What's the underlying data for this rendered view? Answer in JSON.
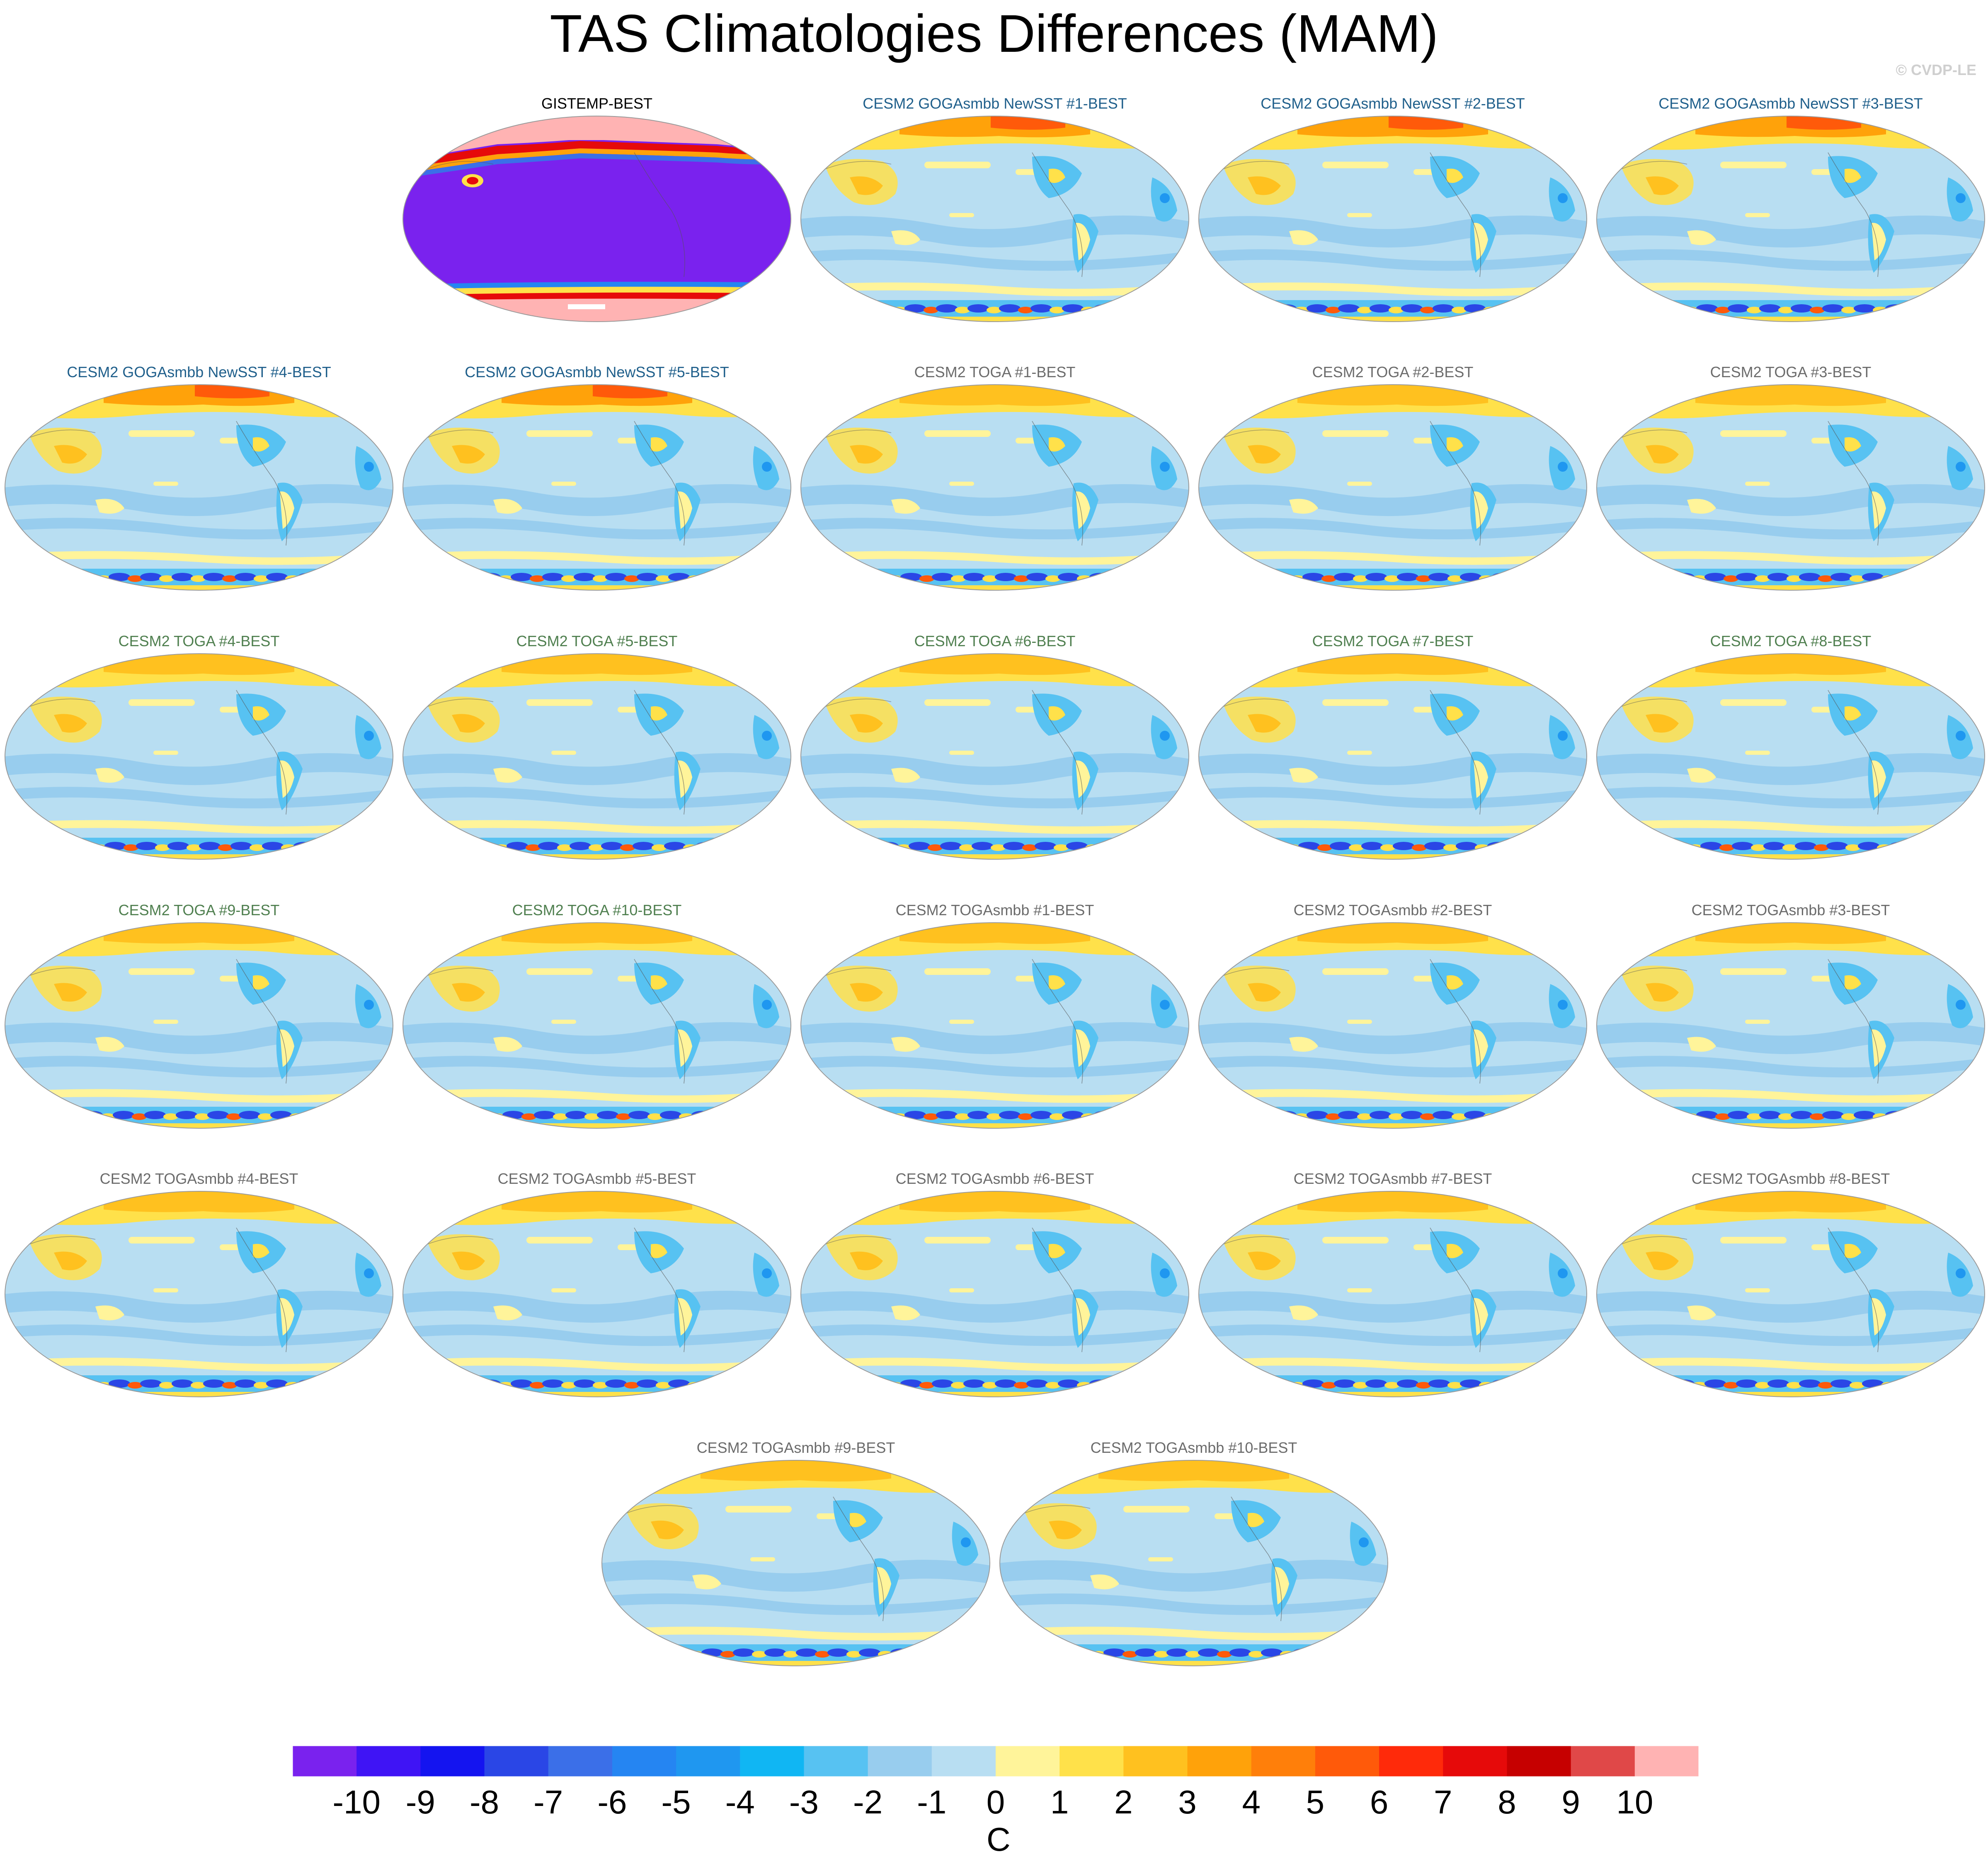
{
  "header": {
    "title": "TAS Climatologies Differences (MAM)",
    "credit": "© CVDP-LE"
  },
  "chart_data": {
    "type": "heatmap",
    "title": "TAS Climatologies Differences (MAM)",
    "projection": "Robinson (Pacific-centered global maps)",
    "panels": [
      {
        "title": "GISTEMP-BEST",
        "title_color": "#000000",
        "pattern": "obs"
      },
      {
        "title": "CESM2 GOGAsmbb NewSST #1-BEST",
        "title_color": "#1f5f8b",
        "pattern": "goga"
      },
      {
        "title": "CESM2 GOGAsmbb NewSST #2-BEST",
        "title_color": "#1f5f8b",
        "pattern": "goga"
      },
      {
        "title": "CESM2 GOGAsmbb NewSST #3-BEST",
        "title_color": "#1f5f8b",
        "pattern": "goga"
      },
      {
        "title": "CESM2 GOGAsmbb NewSST #4-BEST",
        "title_color": "#1f5f8b",
        "pattern": "goga"
      },
      {
        "title": "CESM2 GOGAsmbb NewSST #5-BEST",
        "title_color": "#1f5f8b",
        "pattern": "goga"
      },
      {
        "title": "CESM2 TOGA #1-BEST",
        "title_color": "#6b6b6b",
        "pattern": "toga"
      },
      {
        "title": "CESM2 TOGA #2-BEST",
        "title_color": "#6b6b6b",
        "pattern": "toga"
      },
      {
        "title": "CESM2 TOGA #3-BEST",
        "title_color": "#6b6b6b",
        "pattern": "toga"
      },
      {
        "title": "CESM2 TOGA #4-BEST",
        "title_color": "#4f7f4f",
        "pattern": "toga"
      },
      {
        "title": "CESM2 TOGA #5-BEST",
        "title_color": "#4f7f4f",
        "pattern": "toga"
      },
      {
        "title": "CESM2 TOGA #6-BEST",
        "title_color": "#4f7f4f",
        "pattern": "toga"
      },
      {
        "title": "CESM2 TOGA #7-BEST",
        "title_color": "#4f7f4f",
        "pattern": "toga"
      },
      {
        "title": "CESM2 TOGA #8-BEST",
        "title_color": "#4f7f4f",
        "pattern": "toga"
      },
      {
        "title": "CESM2 TOGA #9-BEST",
        "title_color": "#4f7f4f",
        "pattern": "toga"
      },
      {
        "title": "CESM2 TOGA #10-BEST",
        "title_color": "#4f7f4f",
        "pattern": "toga"
      },
      {
        "title": "CESM2 TOGAsmbb #1-BEST",
        "title_color": "#6b6b6b",
        "pattern": "toga"
      },
      {
        "title": "CESM2 TOGAsmbb #2-BEST",
        "title_color": "#6b6b6b",
        "pattern": "toga"
      },
      {
        "title": "CESM2 TOGAsmbb #3-BEST",
        "title_color": "#6b6b6b",
        "pattern": "toga"
      },
      {
        "title": "CESM2 TOGAsmbb #4-BEST",
        "title_color": "#6b6b6b",
        "pattern": "toga"
      },
      {
        "title": "CESM2 TOGAsmbb #5-BEST",
        "title_color": "#6b6b6b",
        "pattern": "toga"
      },
      {
        "title": "CESM2 TOGAsmbb #6-BEST",
        "title_color": "#6b6b6b",
        "pattern": "toga"
      },
      {
        "title": "CESM2 TOGAsmbb #7-BEST",
        "title_color": "#6b6b6b",
        "pattern": "toga"
      },
      {
        "title": "CESM2 TOGAsmbb #8-BEST",
        "title_color": "#6b6b6b",
        "pattern": "toga"
      },
      {
        "title": "CESM2 TOGAsmbb #9-BEST",
        "title_color": "#6b6b6b",
        "pattern": "toga"
      },
      {
        "title": "CESM2 TOGAsmbb #10-BEST",
        "title_color": "#6b6b6b",
        "pattern": "toga"
      }
    ],
    "colorbar": {
      "units": "C",
      "tick_labels": [
        "-10",
        "-9",
        "-8",
        "-7",
        "-6",
        "-5",
        "-4",
        "-3",
        "-2",
        "-1",
        "0",
        "1",
        "2",
        "3",
        "4",
        "5",
        "6",
        "7",
        "8",
        "9",
        "10"
      ],
      "colors": [
        "#7a22ee",
        "#3f14f5",
        "#1414f0",
        "#2a46e6",
        "#3b6fe8",
        "#2585f2",
        "#1f97f0",
        "#10b6f3",
        "#57c2f2",
        "#98cdee",
        "#b8def2",
        "#fff49a",
        "#ffe14a",
        "#ffc11f",
        "#ffa20a",
        "#ff7f0a",
        "#ff5a0a",
        "#ff2a0a",
        "#e60a0a",
        "#c60000",
        "#e04848",
        "#ffb3b3"
      ]
    }
  }
}
